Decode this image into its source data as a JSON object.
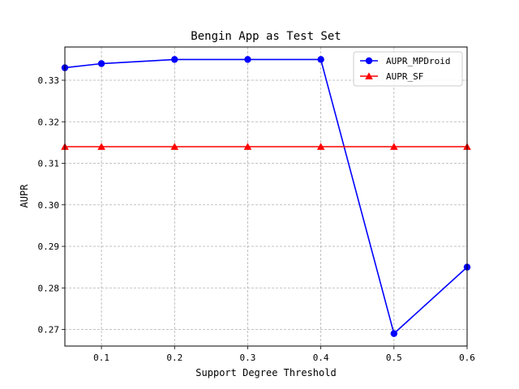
{
  "chart_data": {
    "type": "line",
    "title": "Bengin App as Test Set",
    "xlabel": "Support Degree Threshold",
    "ylabel": "AUPR",
    "xlim": [
      0.05,
      0.6
    ],
    "ylim": [
      0.266,
      0.338
    ],
    "xticks": [
      0.1,
      0.2,
      0.3,
      0.4,
      0.5,
      0.6
    ],
    "xtick_labels": [
      "0.1",
      "0.2",
      "0.3",
      "0.4",
      "0.5",
      "0.6"
    ],
    "yticks": [
      0.27,
      0.28,
      0.29,
      0.3,
      0.31,
      0.32,
      0.33
    ],
    "ytick_labels": [
      "0.27",
      "0.28",
      "0.29",
      "0.30",
      "0.31",
      "0.32",
      "0.33"
    ],
    "grid": true,
    "legend_position": "top-right",
    "x": [
      0.05,
      0.1,
      0.2,
      0.3,
      0.4,
      0.5,
      0.6
    ],
    "series": [
      {
        "name": "AUPR_MPDroid",
        "color": "#0000ff",
        "marker": "circle",
        "values": [
          0.333,
          0.334,
          0.335,
          0.335,
          0.335,
          0.269,
          0.285
        ]
      },
      {
        "name": "AUPR_SF",
        "color": "#ff0000",
        "marker": "triangle",
        "values": [
          0.314,
          0.314,
          0.314,
          0.314,
          0.314,
          0.314,
          0.314
        ]
      }
    ]
  }
}
